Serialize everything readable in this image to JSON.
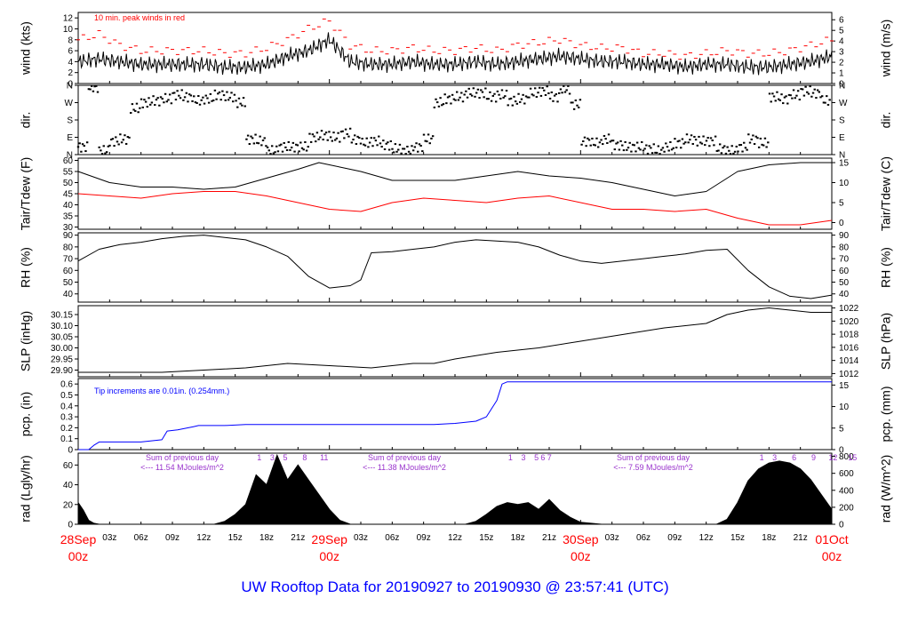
{
  "title": "UW Rooftop Data for 20190927  to  20190930 @ 23:57:41  (UTC)",
  "colors": {
    "frame": "#000000",
    "peak_wind": "#ff0000",
    "dewpoint": "#ff0000",
    "precip": "#0000ff",
    "annotation_purple": "#9933cc",
    "date_labels": "#ff0000",
    "title": "#0000ff"
  },
  "time_axis": {
    "hour_ticks": [
      "03z",
      "06z",
      "09z",
      "12z",
      "15z",
      "18z",
      "21z",
      "03z",
      "06z",
      "09z",
      "12z",
      "15z",
      "18z",
      "21z",
      "03z",
      "06z",
      "09z",
      "12z",
      "15z",
      "18z",
      "21z"
    ],
    "day_labels": [
      {
        "date": "28Sep",
        "hour": "00z"
      },
      {
        "date": "29Sep",
        "hour": "00z"
      },
      {
        "date": "30Sep",
        "hour": "00z"
      },
      {
        "date": "01Oct",
        "hour": "00z"
      }
    ]
  },
  "panels": {
    "wind": {
      "ylabel_left": "wind (kts)",
      "ylabel_right": "wind (m/s)",
      "left_ticks": [
        "0",
        "2",
        "4",
        "6",
        "8",
        "10",
        "12"
      ],
      "right_ticks": [
        "0",
        "1",
        "2",
        "3",
        "4",
        "5",
        "6"
      ],
      "note": "10 min. peak winds in red"
    },
    "dir": {
      "ylabel_left": "dir.",
      "ylabel_right": "dir.",
      "ticks": [
        "N",
        "W",
        "S",
        "E",
        "N"
      ]
    },
    "temp": {
      "ylabel_left": "Tair/Tdew (F)",
      "ylabel_right": "Tair/Tdew (C)",
      "left_ticks": [
        "30",
        "35",
        "40",
        "45",
        "50",
        "55",
        "60"
      ],
      "right_ticks": [
        "0",
        "5",
        "10",
        "15"
      ]
    },
    "rh": {
      "ylabel_left": "RH (%)",
      "ylabel_right": "RH (%)",
      "ticks": [
        "40",
        "50",
        "60",
        "70",
        "80",
        "90"
      ]
    },
    "slp": {
      "ylabel_left": "SLP (inHg)",
      "ylabel_right": "SLP (hPa)",
      "left_ticks": [
        "29.90",
        "29.95",
        "30.00",
        "30.05",
        "30.10",
        "30.15"
      ],
      "right_ticks": [
        "1012",
        "1014",
        "1016",
        "1018",
        "1020",
        "1022"
      ]
    },
    "pcp": {
      "ylabel_left": "pcp. (in)",
      "ylabel_right": "pcp. (mm)",
      "left_ticks": [
        "0",
        "0.1",
        "0.2",
        "0.3",
        "0.4",
        "0.5",
        "0.6"
      ],
      "right_ticks": [
        "0",
        "5",
        "10",
        "15"
      ],
      "note": "Tip increments are 0.01in. (0.254mm.)"
    },
    "rad": {
      "ylabel_left": "rad (Lgly/hr)",
      "ylabel_right": "rad (W/m^2)",
      "left_ticks": [
        "0",
        "20",
        "40",
        "60"
      ],
      "right_ticks": [
        "0",
        "200",
        "400",
        "600",
        "800"
      ],
      "day_sums": [
        {
          "line1": "Sum of previous day",
          "line2": "<--- 11.54 MJoules/m^2"
        },
        {
          "line1": "Sum of previous day",
          "line2": "<--- 11.38 MJoules/m^2"
        },
        {
          "line1": "Sum of previous day",
          "line2": "<--- 7.59 MJoules/m^2"
        }
      ],
      "hour_marks": [
        [
          "1",
          "3",
          "5",
          "8",
          "11"
        ],
        [
          "1",
          "3",
          "5",
          "6",
          "7"
        ],
        [
          "1",
          "3",
          "6",
          "9",
          "12",
          "15"
        ]
      ]
    }
  },
  "chart_data": {
    "type": "line",
    "title": "UW Rooftop Data for 20190927  to  20190930 @ 23:57:41  (UTC)",
    "x_unit": "hours since 28Sep 00z",
    "xlim": [
      0,
      72
    ],
    "series": [
      {
        "name": "wind (kts)",
        "panel": "wind",
        "ylim": [
          0,
          13
        ],
        "x": [
          0,
          2,
          4,
          6,
          8,
          10,
          12,
          14,
          16,
          18,
          20,
          22,
          24,
          26,
          28,
          30,
          32,
          34,
          36,
          38,
          40,
          42,
          44,
          46,
          48,
          50,
          52,
          54,
          56,
          58,
          60,
          62,
          64,
          66,
          68,
          70,
          72
        ],
        "y": [
          4,
          4.5,
          4,
          3.5,
          3.5,
          3.5,
          3.5,
          3,
          3,
          3.5,
          5,
          6,
          8,
          4,
          3.5,
          3.5,
          4,
          3.5,
          3.5,
          4,
          3.5,
          4,
          4.5,
          5,
          4.5,
          4,
          4,
          3.5,
          3.5,
          3,
          3.5,
          3.5,
          3,
          3,
          3.5,
          4,
          5
        ]
      },
      {
        "name": "10 min. peak winds (kts)",
        "panel": "wind",
        "ylim": [
          0,
          13
        ],
        "x": [
          0,
          2,
          4,
          6,
          8,
          10,
          12,
          14,
          16,
          18,
          20,
          22,
          24,
          26,
          28,
          30,
          32,
          34,
          36,
          38,
          40,
          42,
          44,
          46,
          48,
          50,
          52,
          54,
          56,
          58,
          60,
          62,
          64,
          66,
          68,
          70,
          72
        ],
        "y": [
          8,
          9,
          7,
          6,
          6,
          6,
          6,
          5.5,
          5.5,
          6.5,
          8,
          10,
          11.5,
          7,
          6,
          6,
          6.5,
          6,
          6,
          6.5,
          6,
          7,
          7.5,
          8,
          7,
          6.5,
          6.5,
          5.5,
          5.5,
          5,
          5.5,
          6,
          5.5,
          5.5,
          6,
          7,
          8
        ]
      },
      {
        "name": "wind dir",
        "panel": "dir",
        "ylim": [
          0,
          360
        ],
        "categories_y": [
          "N",
          "E",
          "S",
          "W",
          "N"
        ],
        "x": [
          0,
          1,
          2,
          3,
          4,
          5,
          6,
          7,
          8,
          9,
          10,
          11,
          12,
          13,
          14,
          15,
          16,
          17,
          18,
          19,
          20,
          21,
          22,
          23,
          24,
          25,
          26,
          27,
          28,
          29,
          30,
          31,
          32,
          33,
          34,
          35,
          36,
          37,
          38,
          39,
          40,
          41,
          42,
          43,
          44,
          45,
          46,
          47,
          48,
          49,
          50,
          51,
          52,
          53,
          54,
          55,
          56,
          57,
          58,
          59,
          60,
          61,
          62,
          63,
          64,
          65,
          66,
          67,
          68,
          69,
          70,
          71
        ],
        "y": [
          40,
          350,
          20,
          70,
          80,
          240,
          270,
          280,
          290,
          310,
          300,
          280,
          290,
          310,
          300,
          270,
          80,
          70,
          20,
          40,
          40,
          40,
          90,
          100,
          90,
          110,
          80,
          60,
          70,
          50,
          30,
          20,
          40,
          80,
          270,
          290,
          300,
          320,
          320,
          300,
          310,
          280,
          290,
          320,
          330,
          300,
          340,
          260,
          70,
          60,
          80,
          50,
          40,
          40,
          30,
          20,
          40,
          60,
          80,
          70,
          70,
          30,
          20,
          40,
          80,
          60,
          300,
          290,
          310,
          330,
          320,
          280
        ]
      },
      {
        "name": "Tair (F)",
        "panel": "temp",
        "ylim": [
          29,
          61
        ],
        "x": [
          0,
          3,
          6,
          9,
          12,
          15,
          18,
          21,
          23,
          24,
          25,
          27,
          30,
          33,
          36,
          39,
          42,
          45,
          48,
          51,
          54,
          57,
          60,
          63,
          66,
          69,
          72
        ],
        "y": [
          55,
          50,
          48,
          48,
          47,
          48,
          52,
          56,
          59,
          58,
          57,
          55,
          51,
          51,
          51,
          53,
          55,
          53,
          52,
          50,
          47,
          44,
          46,
          55,
          58,
          59,
          59
        ]
      },
      {
        "name": "Tdew (F)",
        "panel": "temp",
        "ylim": [
          29,
          61
        ],
        "x": [
          0,
          3,
          6,
          9,
          12,
          15,
          18,
          21,
          24,
          27,
          30,
          33,
          36,
          39,
          42,
          45,
          48,
          51,
          54,
          57,
          60,
          63,
          66,
          69,
          72
        ],
        "y": [
          45,
          44,
          43,
          45,
          46,
          46,
          44,
          41,
          38,
          37,
          41,
          43,
          42,
          41,
          43,
          44,
          41,
          38,
          38,
          37,
          38,
          34,
          31,
          31,
          33
        ]
      },
      {
        "name": "RH (%)",
        "panel": "rh",
        "ylim": [
          33,
          92
        ],
        "x": [
          0,
          2,
          4,
          6,
          8,
          10,
          12,
          14,
          16,
          18,
          20,
          22,
          24,
          26,
          27,
          28,
          30,
          32,
          34,
          36,
          38,
          40,
          42,
          44,
          46,
          48,
          50,
          52,
          54,
          56,
          58,
          60,
          62,
          64,
          66,
          68,
          70,
          72
        ],
        "y": [
          68,
          78,
          82,
          84,
          87,
          89,
          90,
          88,
          86,
          80,
          72,
          55,
          45,
          47,
          52,
          75,
          76,
          78,
          80,
          84,
          86,
          85,
          84,
          80,
          73,
          68,
          66,
          68,
          70,
          72,
          74,
          77,
          78,
          60,
          46,
          38,
          36,
          39
        ]
      },
      {
        "name": "SLP (inHg)",
        "panel": "slp",
        "ylim": [
          29.87,
          30.19
        ],
        "x": [
          0,
          4,
          8,
          12,
          16,
          20,
          24,
          28,
          30,
          32,
          34,
          36,
          40,
          44,
          48,
          52,
          56,
          60,
          62,
          64,
          66,
          68,
          70,
          72
        ],
        "y": [
          29.89,
          29.89,
          29.89,
          29.9,
          29.91,
          29.93,
          29.92,
          29.91,
          29.92,
          29.93,
          29.93,
          29.95,
          29.98,
          30.0,
          30.03,
          30.06,
          30.09,
          30.11,
          30.15,
          30.17,
          30.18,
          30.17,
          30.16,
          30.16
        ]
      },
      {
        "name": "pcp. (in)",
        "panel": "pcp",
        "ylim": [
          0,
          0.65
        ],
        "x": [
          0,
          1,
          1.5,
          2,
          4,
          6,
          8,
          8.5,
          9.5,
          11,
          11.5,
          12,
          14,
          16,
          18,
          20,
          22,
          24,
          26,
          28,
          30,
          32,
          34,
          36,
          38,
          39,
          40,
          40.5,
          41,
          42,
          44,
          48,
          52,
          56,
          60,
          64,
          68,
          72
        ],
        "y": [
          0,
          0,
          0.04,
          0.07,
          0.07,
          0.07,
          0.09,
          0.17,
          0.18,
          0.21,
          0.22,
          0.22,
          0.22,
          0.23,
          0.23,
          0.23,
          0.23,
          0.23,
          0.23,
          0.23,
          0.23,
          0.23,
          0.23,
          0.24,
          0.26,
          0.3,
          0.45,
          0.6,
          0.62,
          0.62,
          0.62,
          0.62,
          0.62,
          0.62,
          0.62,
          0.62,
          0.62,
          0.62
        ]
      },
      {
        "name": "rad (Lgly/hr)",
        "panel": "rad",
        "ylim": [
          0,
          72
        ],
        "x": [
          0,
          0.5,
          1,
          1.5,
          2,
          13,
          14,
          15,
          16,
          17,
          18,
          19,
          20,
          21,
          22,
          23,
          24,
          25,
          26,
          37,
          38,
          39,
          40,
          41,
          42,
          43,
          44,
          45,
          46,
          47,
          48,
          49,
          50,
          61,
          62,
          63,
          64,
          65,
          66,
          67,
          68,
          69,
          70,
          71,
          72
        ],
        "y": [
          22,
          14,
          4,
          1,
          0,
          0,
          3,
          10,
          20,
          50,
          40,
          70,
          45,
          60,
          45,
          30,
          15,
          4,
          0,
          0,
          3,
          10,
          18,
          22,
          20,
          22,
          15,
          25,
          14,
          7,
          2,
          1,
          0,
          0,
          5,
          22,
          44,
          56,
          62,
          64,
          62,
          56,
          45,
          30,
          15
        ]
      }
    ]
  }
}
